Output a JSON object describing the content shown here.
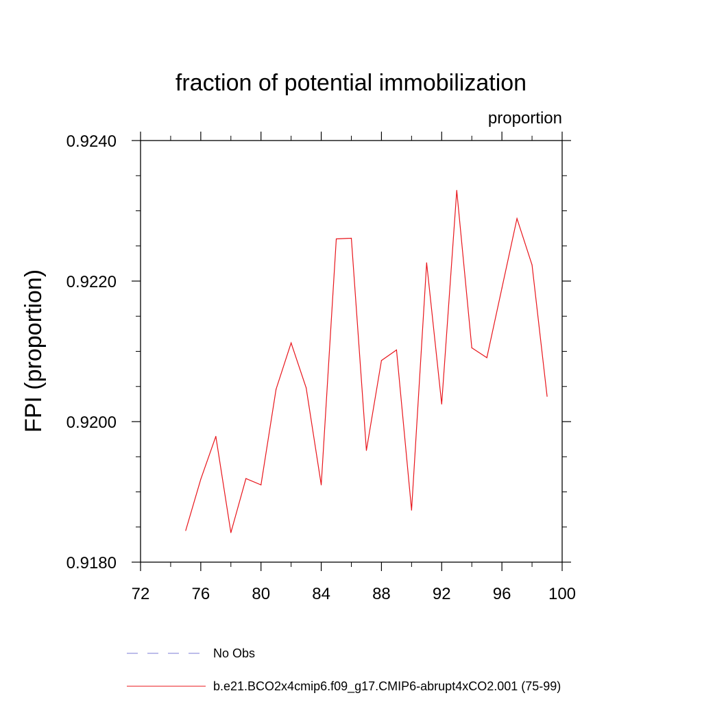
{
  "chart_data": {
    "type": "line",
    "title": "fraction of potential immobilization",
    "units_label": "proportion",
    "xlabel": "",
    "ylabel": "FPI  (proportion)",
    "xlim": [
      72,
      100
    ],
    "ylim": [
      0.918,
      0.924
    ],
    "x_ticks": [
      "72",
      "76",
      "80",
      "84",
      "88",
      "92",
      "96",
      "100"
    ],
    "y_ticks": [
      "0.9180",
      "0.9200",
      "0.9220",
      "0.9240"
    ],
    "series": [
      {
        "name": "b.e21.BCO2x4cmip6.f09_g17.CMIP6-abrupt4xCO2.001 (75-99)",
        "color": "#e8141a",
        "style": "solid",
        "x": [
          75,
          76,
          77,
          78,
          79,
          80,
          81,
          82,
          83,
          84,
          85,
          86,
          87,
          88,
          89,
          90,
          91,
          92,
          93,
          94,
          95,
          96,
          97,
          98,
          99
        ],
        "values": [
          0.91845,
          0.91918,
          0.91979,
          0.91842,
          0.91919,
          0.9191,
          0.92046,
          0.92112,
          0.92048,
          0.9191,
          0.9226,
          0.92261,
          0.91959,
          0.92087,
          0.92102,
          0.91874,
          0.92226,
          0.92025,
          0.92329,
          0.92105,
          0.92091,
          0.9219,
          0.92289,
          0.92223,
          0.92036
        ]
      }
    ],
    "legend": [
      {
        "label": "No Obs",
        "color": "#7b7bd6",
        "style": "dashed"
      },
      {
        "label": "b.e21.BCO2x4cmip6.f09_g17.CMIP6-abrupt4xCO2.001 (75-99)",
        "color": "#e8141a",
        "style": "solid"
      }
    ]
  }
}
